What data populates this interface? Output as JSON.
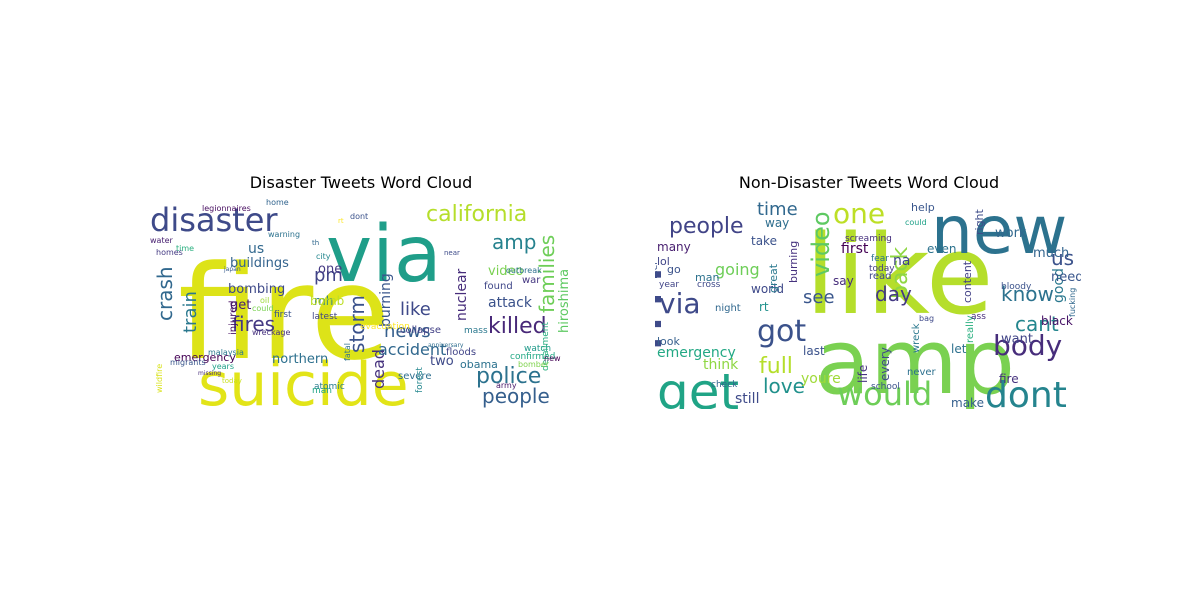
{
  "chart_data": [
    {
      "type": "wordcloud",
      "title": "Disaster Tweets Word Cloud",
      "words": [
        {
          "text": "fire",
          "weight": 1.0,
          "color": "#dde318"
        },
        {
          "text": "suicide",
          "weight": 0.62,
          "color": "#e2e418"
        },
        {
          "text": "via",
          "weight": 0.62,
          "color": "#1f9e89"
        },
        {
          "text": "disaster",
          "weight": 0.42,
          "color": "#3e4a89"
        },
        {
          "text": "california",
          "weight": 0.28,
          "color": "#b5de2b"
        },
        {
          "text": "police",
          "weight": 0.26,
          "color": "#2c728e"
        },
        {
          "text": "killed",
          "weight": 0.24,
          "color": "#482878"
        },
        {
          "text": "people",
          "weight": 0.24,
          "color": "#355f8d"
        },
        {
          "text": "families",
          "weight": 0.22,
          "color": "#6ece58"
        },
        {
          "text": "amp",
          "weight": 0.22,
          "color": "#26828e"
        },
        {
          "text": "storm",
          "weight": 0.2,
          "color": "#3b528b"
        },
        {
          "text": "crash",
          "weight": 0.2,
          "color": "#31688e"
        },
        {
          "text": "fires",
          "weight": 0.2,
          "color": "#443983"
        },
        {
          "text": "news",
          "weight": 0.2,
          "color": "#355f8d"
        },
        {
          "text": "like",
          "weight": 0.2,
          "color": "#3e4989"
        },
        {
          "text": "pm",
          "weight": 0.2,
          "color": "#414487"
        },
        {
          "text": "train",
          "weight": 0.18,
          "color": "#2a788e"
        },
        {
          "text": "dead",
          "weight": 0.16,
          "color": "#46327e"
        },
        {
          "text": "accident",
          "weight": 0.16,
          "color": "#31688e"
        },
        {
          "text": "nuclear",
          "weight": 0.15,
          "color": "#472d7b"
        },
        {
          "text": "attack",
          "weight": 0.15,
          "color": "#3b528b"
        },
        {
          "text": "burning",
          "weight": 0.15,
          "color": "#39568c"
        },
        {
          "text": "hiroshima",
          "weight": 0.14,
          "color": "#5ec962"
        },
        {
          "text": "buildings",
          "weight": 0.14,
          "color": "#33638d"
        },
        {
          "text": "bombing",
          "weight": 0.14,
          "color": "#3e4989"
        },
        {
          "text": "northern",
          "weight": 0.14,
          "color": "#2d708e"
        },
        {
          "text": "us",
          "weight": 0.14,
          "color": "#31688e"
        },
        {
          "text": "video",
          "weight": 0.13,
          "color": "#7ad151"
        },
        {
          "text": "emergency",
          "weight": 0.12,
          "color": "#440154"
        },
        {
          "text": "two",
          "weight": 0.12,
          "color": "#3e4a89"
        },
        {
          "text": "obama",
          "weight": 0.11,
          "color": "#2c728e"
        },
        {
          "text": "get",
          "weight": 0.12,
          "color": "#481f70"
        },
        {
          "text": "mh",
          "weight": 0.12,
          "color": "#2a788e"
        },
        {
          "text": "bomb",
          "weight": 0.12,
          "color": "#bddf26"
        },
        {
          "text": "one",
          "weight": 0.12,
          "color": "#443983"
        },
        {
          "text": "injured",
          "weight": 0.1,
          "color": "#471063"
        },
        {
          "text": "collapse",
          "weight": 0.1,
          "color": "#424086"
        },
        {
          "text": "severe",
          "weight": 0.1,
          "color": "#2e6e8e"
        },
        {
          "text": "floods",
          "weight": 0.1,
          "color": "#414487"
        },
        {
          "text": "found",
          "weight": 0.1,
          "color": "#3f4788"
        },
        {
          "text": "war",
          "weight": 0.1,
          "color": "#453781"
        },
        {
          "text": "mass",
          "weight": 0.09,
          "color": "#2a788e"
        },
        {
          "text": "watch",
          "weight": 0.09,
          "color": "#1f9a8a"
        },
        {
          "text": "confirmed",
          "weight": 0.08,
          "color": "#22a884"
        },
        {
          "text": "derailment",
          "weight": 0.08,
          "color": "#29af7f"
        },
        {
          "text": "latest",
          "weight": 0.09,
          "color": "#404588"
        },
        {
          "text": "first",
          "weight": 0.09,
          "color": "#3a548c"
        },
        {
          "text": "evacuation",
          "weight": 0.08,
          "color": "#fde725"
        },
        {
          "text": "forest",
          "weight": 0.09,
          "color": "#24878e"
        },
        {
          "text": "atomic",
          "weight": 0.08,
          "color": "#287c8e"
        },
        {
          "text": "man",
          "weight": 0.09,
          "color": "#20a486"
        },
        {
          "text": "army",
          "weight": 0.07,
          "color": "#48186a"
        },
        {
          "text": "bomber",
          "weight": 0.07,
          "color": "#7fd34e"
        },
        {
          "text": "outbreak",
          "weight": 0.07,
          "color": "#2d708e"
        },
        {
          "text": "city",
          "weight": 0.07,
          "color": "#24868e"
        },
        {
          "text": "warning",
          "weight": 0.07,
          "color": "#2c728e"
        },
        {
          "text": "home",
          "weight": 0.07,
          "color": "#32648e"
        },
        {
          "text": "legionnaires",
          "weight": 0.07,
          "color": "#470d60"
        },
        {
          "text": "time",
          "weight": 0.07,
          "color": "#29af7f"
        },
        {
          "text": "water",
          "weight": 0.07,
          "color": "#482071"
        },
        {
          "text": "homes",
          "weight": 0.07,
          "color": "#443a83"
        },
        {
          "text": "migrants",
          "weight": 0.07,
          "color": "#39568c"
        },
        {
          "text": "malaysia",
          "weight": 0.07,
          "color": "#2a788e"
        },
        {
          "text": "wreckage",
          "weight": 0.06,
          "color": "#46307e"
        },
        {
          "text": "could",
          "weight": 0.06,
          "color": "#7ad151"
        },
        {
          "text": "years",
          "weight": 0.07,
          "color": "#1fa188"
        },
        {
          "text": "fatal",
          "weight": 0.06,
          "color": "#2d708e"
        },
        {
          "text": "dont",
          "weight": 0.07,
          "color": "#3b528b"
        },
        {
          "text": "new",
          "weight": 0.06,
          "color": "#440154"
        },
        {
          "text": "wildfire",
          "weight": 0.07,
          "color": "#d8e219"
        },
        {
          "text": "missing",
          "weight": 0.05,
          "color": "#472c7a"
        },
        {
          "text": "japan",
          "weight": 0.05,
          "color": "#375b8d"
        },
        {
          "text": "oil",
          "weight": 0.06,
          "color": "#a0da39"
        },
        {
          "text": "today",
          "weight": 0.06,
          "color": "#cae11f"
        },
        {
          "text": "rt",
          "weight": 0.05,
          "color": "#fde725"
        },
        {
          "text": "th",
          "weight": 0.05,
          "color": "#31688e"
        },
        {
          "text": "near",
          "weight": 0.05,
          "color": "#3e4c8a"
        },
        {
          "text": "anniversary",
          "weight": 0.04,
          "color": "#2e6d8e"
        }
      ]
    },
    {
      "type": "wordcloud",
      "title": "Non-Disaster Tweets Word Cloud",
      "words": [
        {
          "text": "like",
          "weight": 1.0,
          "color": "#b5de2b"
        },
        {
          "text": "amp",
          "weight": 0.82,
          "color": "#7ad151"
        },
        {
          "text": "im",
          "weight": 0.62,
          "color": "#3e4a89"
        },
        {
          "text": "new",
          "weight": 0.55,
          "color": "#2c728e"
        },
        {
          "text": "get",
          "weight": 0.42,
          "color": "#20a486"
        },
        {
          "text": "dont",
          "weight": 0.33,
          "color": "#25848e"
        },
        {
          "text": "would",
          "weight": 0.3,
          "color": "#6ece58"
        },
        {
          "text": "one",
          "weight": 0.28,
          "color": "#bddf26"
        },
        {
          "text": "body",
          "weight": 0.27,
          "color": "#472d7b"
        },
        {
          "text": "got",
          "weight": 0.26,
          "color": "#3b528b"
        },
        {
          "text": "via",
          "weight": 0.24,
          "color": "#3e4989"
        },
        {
          "text": "video",
          "weight": 0.22,
          "color": "#5ec962"
        },
        {
          "text": "people",
          "weight": 0.18,
          "color": "#414487"
        },
        {
          "text": "full",
          "weight": 0.18,
          "color": "#b5de2b"
        },
        {
          "text": "back",
          "weight": 0.18,
          "color": "#8fd744"
        },
        {
          "text": "love",
          "weight": 0.17,
          "color": "#21918c"
        },
        {
          "text": "us",
          "weight": 0.16,
          "color": "#3b528b"
        },
        {
          "text": "know",
          "weight": 0.16,
          "color": "#2c728e"
        },
        {
          "text": "cant",
          "weight": 0.15,
          "color": "#24868e"
        },
        {
          "text": "day",
          "weight": 0.14,
          "color": "#443983"
        },
        {
          "text": "time",
          "weight": 0.14,
          "color": "#31688e"
        },
        {
          "text": "see",
          "weight": 0.13,
          "color": "#39568c"
        },
        {
          "text": "going",
          "weight": 0.12,
          "color": "#6ece58"
        },
        {
          "text": "think",
          "weight": 0.11,
          "color": "#8fd744"
        },
        {
          "text": "emergency",
          "weight": 0.11,
          "color": "#22a884"
        },
        {
          "text": "first",
          "weight": 0.11,
          "color": "#440154"
        },
        {
          "text": "youre",
          "weight": 0.1,
          "color": "#a0da39"
        },
        {
          "text": "good",
          "weight": 0.1,
          "color": "#2a788e"
        },
        {
          "text": "still",
          "weight": 0.1,
          "color": "#3e4a89"
        },
        {
          "text": "make",
          "weight": 0.09,
          "color": "#355f8d"
        },
        {
          "text": "last",
          "weight": 0.09,
          "color": "#3b528b"
        },
        {
          "text": "black",
          "weight": 0.09,
          "color": "#481467"
        },
        {
          "text": "fire",
          "weight": 0.09,
          "color": "#46327e"
        },
        {
          "text": "na",
          "weight": 0.09,
          "color": "#404588"
        },
        {
          "text": "work",
          "weight": 0.09,
          "color": "#31688e"
        },
        {
          "text": "much",
          "weight": 0.09,
          "color": "#32648e"
        },
        {
          "text": "need",
          "weight": 0.09,
          "color": "#39568c"
        },
        {
          "text": "want",
          "weight": 0.09,
          "color": "#414487"
        },
        {
          "text": "world",
          "weight": 0.08,
          "color": "#3e4989"
        },
        {
          "text": "say",
          "weight": 0.08,
          "color": "#472d7b"
        },
        {
          "text": "even",
          "weight": 0.08,
          "color": "#2c728e"
        },
        {
          "text": "let",
          "weight": 0.08,
          "color": "#2d708e"
        },
        {
          "text": "life",
          "weight": 0.08,
          "color": "#463480"
        },
        {
          "text": "every",
          "weight": 0.08,
          "color": "#3e4989"
        },
        {
          "text": "many",
          "weight": 0.07,
          "color": "#481f70"
        },
        {
          "text": "way",
          "weight": 0.07,
          "color": "#2e6e8e"
        },
        {
          "text": "take",
          "weight": 0.07,
          "color": "#3b528b"
        },
        {
          "text": "help",
          "weight": 0.07,
          "color": "#39568c"
        },
        {
          "text": "burning",
          "weight": 0.07,
          "color": "#46327e"
        },
        {
          "text": "great",
          "weight": 0.07,
          "color": "#2a788e"
        },
        {
          "text": "rt",
          "weight": 0.07,
          "color": "#21918c"
        },
        {
          "text": "right",
          "weight": 0.07,
          "color": "#3e4c8a"
        },
        {
          "text": "content",
          "weight": 0.07,
          "color": "#424086"
        },
        {
          "text": "look",
          "weight": 0.07,
          "color": "#355f8d"
        },
        {
          "text": "lol",
          "weight": 0.07,
          "color": "#404588"
        },
        {
          "text": "go",
          "weight": 0.07,
          "color": "#3b528b"
        },
        {
          "text": "man",
          "weight": 0.07,
          "color": "#2c728e"
        },
        {
          "text": "read",
          "weight": 0.06,
          "color": "#3e4989"
        },
        {
          "text": "night",
          "weight": 0.06,
          "color": "#31688e"
        },
        {
          "text": "never",
          "weight": 0.06,
          "color": "#2d708e"
        },
        {
          "text": "really",
          "weight": 0.06,
          "color": "#29af7f"
        },
        {
          "text": "wreck",
          "weight": 0.06,
          "color": "#2a788e"
        },
        {
          "text": "year",
          "weight": 0.05,
          "color": "#414487"
        },
        {
          "text": "cross",
          "weight": 0.05,
          "color": "#3e4989"
        },
        {
          "text": "check",
          "weight": 0.05,
          "color": "#32648e"
        },
        {
          "text": "today",
          "weight": 0.05,
          "color": "#433e85"
        },
        {
          "text": "school",
          "weight": 0.05,
          "color": "#3b528b"
        },
        {
          "text": "bag",
          "weight": 0.05,
          "color": "#3e4989"
        },
        {
          "text": "ass",
          "weight": 0.05,
          "color": "#472d7b"
        },
        {
          "text": "bloody",
          "weight": 0.05,
          "color": "#3b528b"
        },
        {
          "text": "screaming",
          "weight": 0.05,
          "color": "#46307e"
        },
        {
          "text": "fucking",
          "weight": 0.05,
          "color": "#31688e"
        },
        {
          "text": "feel",
          "weight": 0.05,
          "color": "#3b528b"
        },
        {
          "text": "fear",
          "weight": 0.05,
          "color": "#2c728e"
        },
        {
          "text": "could",
          "weight": 0.05,
          "color": "#1fa188"
        }
      ]
    }
  ]
}
